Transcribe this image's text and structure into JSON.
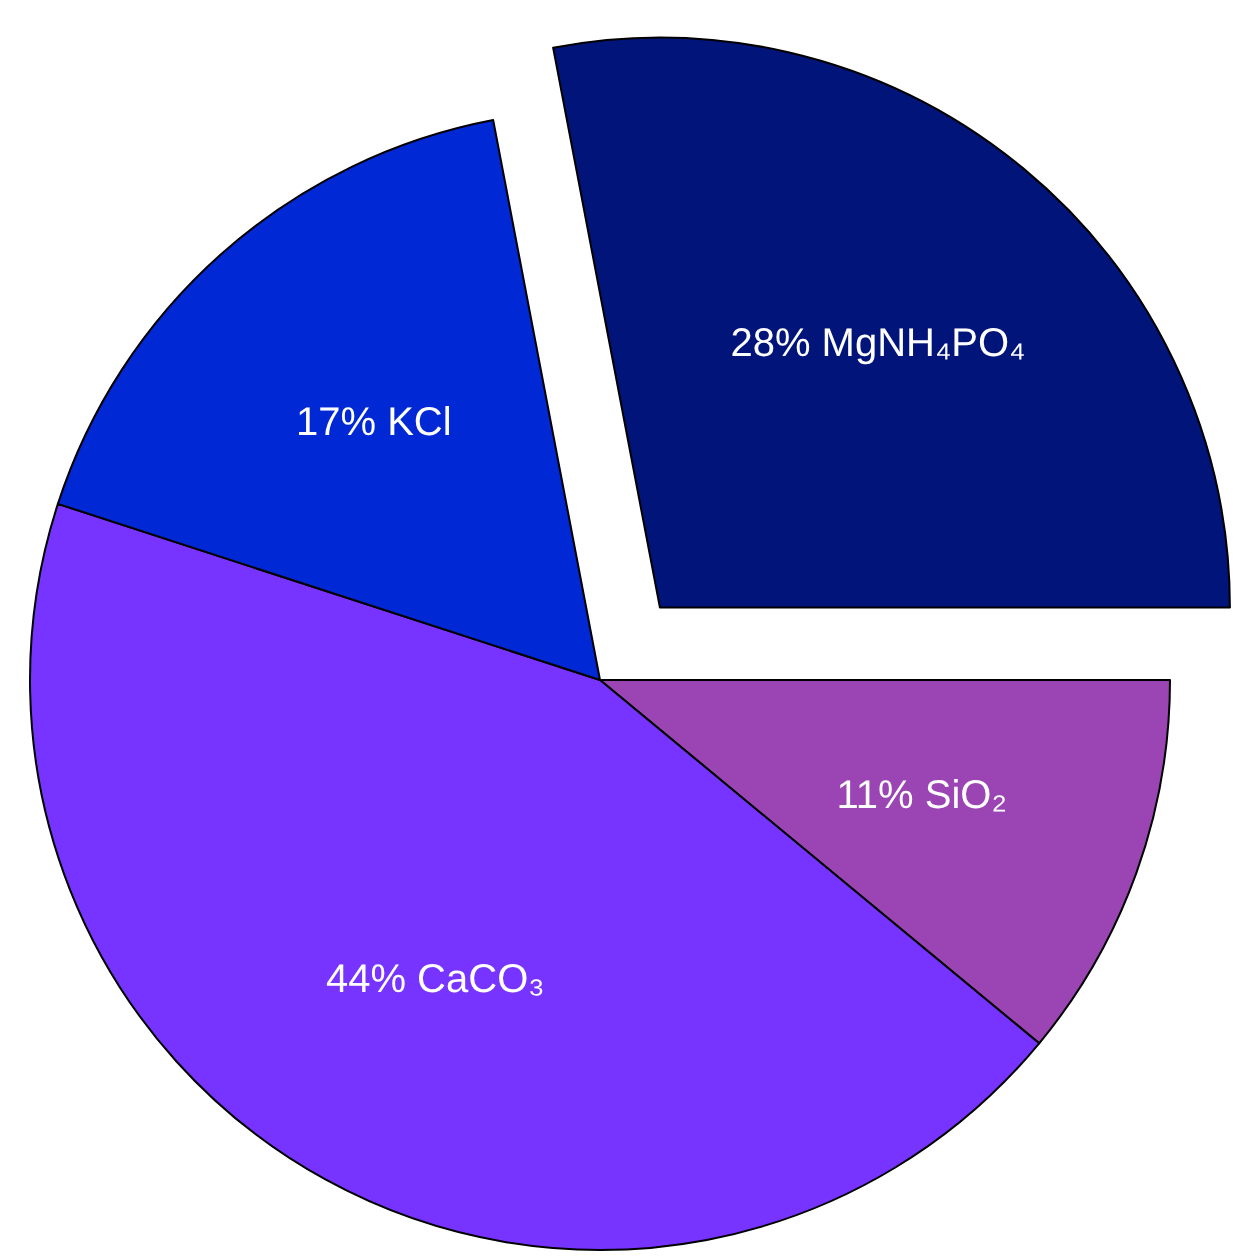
{
  "chart_data": {
    "type": "pie",
    "categories": [
      "SiO₂",
      "CaCO₃",
      "KCl",
      "MgNH₄PO₄"
    ],
    "values": [
      11,
      44,
      17,
      28
    ],
    "value_labels": [
      "11%",
      "44%",
      "17%",
      "28%"
    ],
    "colors": [
      "#9b44b4",
      "#7733ff",
      "#0028d4",
      "#00147a"
    ]
  }
}
